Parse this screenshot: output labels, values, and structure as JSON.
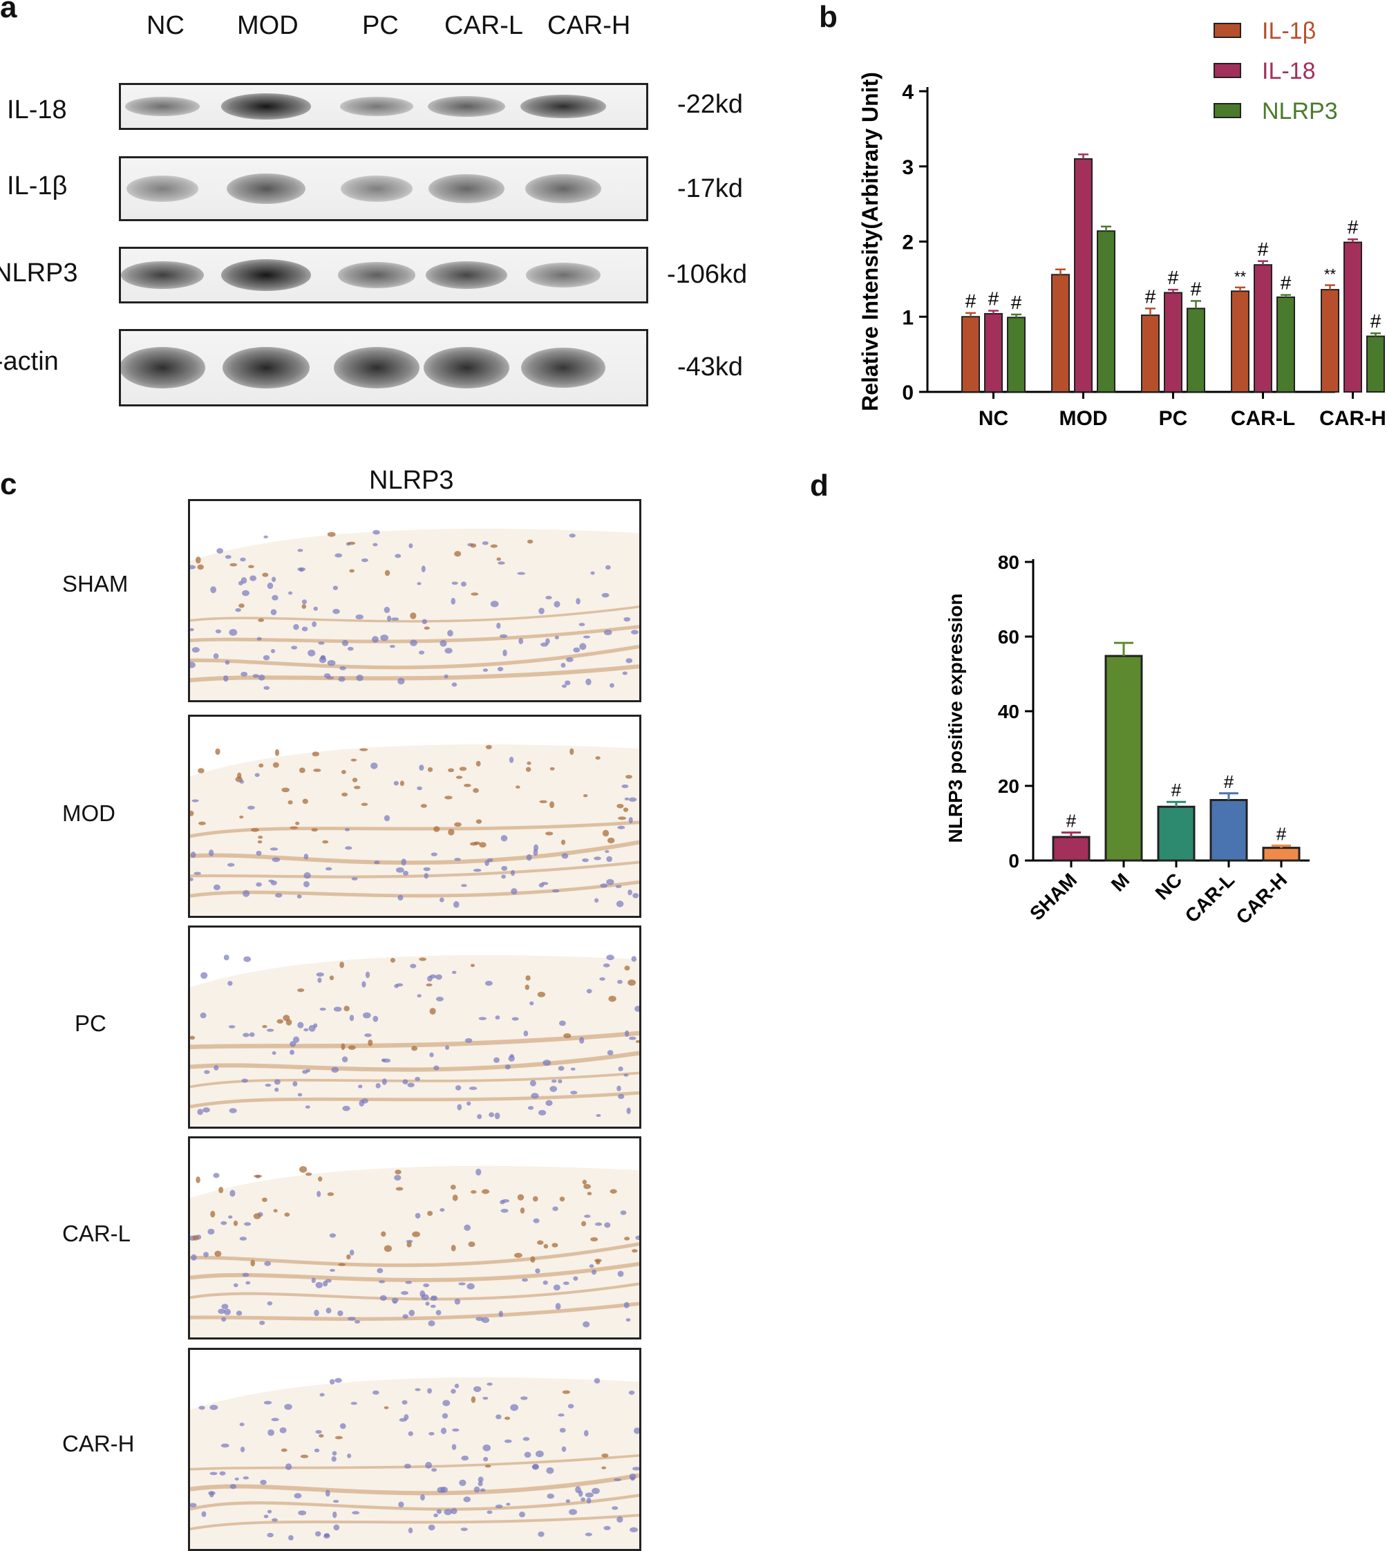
{
  "panel_a": {
    "letter": "a",
    "lanes": [
      "NC",
      "MOD",
      "PC",
      "CAR-L",
      "CAR-H"
    ],
    "rows": [
      {
        "label": "IL-18",
        "kd": "-22kd",
        "intensity": [
          0.45,
          1.0,
          0.4,
          0.55,
          0.85
        ]
      },
      {
        "label": "IL-1β",
        "kd": "-17kd",
        "intensity": [
          0.35,
          0.6,
          0.35,
          0.5,
          0.5
        ]
      },
      {
        "label": "NLRP3",
        "kd": "-106kd",
        "intensity": [
          0.75,
          1.0,
          0.55,
          0.7,
          0.45
        ]
      },
      {
        "label": "β-actin",
        "kd": "-43kd",
        "intensity": [
          0.85,
          0.9,
          0.85,
          0.85,
          0.8
        ]
      }
    ]
  },
  "panel_c": {
    "letter": "c",
    "title": "NLRP3",
    "rows": [
      "SHAM",
      "MOD",
      "PC",
      "CAR-L",
      "CAR-H"
    ]
  },
  "chart_data": [
    {
      "panel": "b",
      "type": "bar",
      "ylabel": "Relative Intensity(Arbitrary Unit)",
      "ylim": [
        0,
        4
      ],
      "yticks": [
        0,
        1,
        2,
        3,
        4
      ],
      "categories": [
        "NC",
        "MOD",
        "PC",
        "CAR-L",
        "CAR-H"
      ],
      "legend_position": "top-right",
      "series": [
        {
          "name": "IL-1β",
          "color": "#b6502c",
          "values": [
            1.0,
            1.56,
            1.02,
            1.34,
            1.36
          ],
          "errors": [
            0.05,
            0.07,
            0.09,
            0.05,
            0.06
          ],
          "annotations": [
            "#",
            "",
            "#",
            "**",
            "**"
          ]
        },
        {
          "name": "IL-18",
          "color": "#a3305a",
          "values": [
            1.04,
            3.1,
            1.32,
            1.69,
            1.99
          ],
          "errors": [
            0.04,
            0.06,
            0.04,
            0.05,
            0.04
          ],
          "annotations": [
            "#",
            "",
            "#",
            "#",
            "#"
          ]
        },
        {
          "name": "NLRP3",
          "color": "#4a7a2c",
          "values": [
            0.99,
            2.14,
            1.11,
            1.26,
            0.74
          ],
          "errors": [
            0.04,
            0.06,
            0.1,
            0.03,
            0.04
          ],
          "annotations": [
            "#",
            "",
            "#",
            "#",
            "#"
          ]
        }
      ]
    },
    {
      "panel": "d",
      "type": "bar",
      "ylabel": "NLRP3 positive expression",
      "ylim": [
        0,
        80
      ],
      "yticks": [
        0,
        20,
        40,
        60,
        80
      ],
      "categories": [
        "SHAM",
        "M",
        "NC",
        "CAR-L",
        "CAR-H"
      ],
      "values": [
        6.3,
        54.8,
        14.4,
        16.2,
        3.4
      ],
      "errors": [
        1.2,
        3.5,
        1.3,
        1.8,
        0.6
      ],
      "colors": [
        "#a3305a",
        "#5d8a2e",
        "#2e8a6e",
        "#4a74b0",
        "#f08a4a"
      ],
      "annotations": [
        "#",
        "",
        "#",
        "#",
        "#"
      ]
    }
  ]
}
